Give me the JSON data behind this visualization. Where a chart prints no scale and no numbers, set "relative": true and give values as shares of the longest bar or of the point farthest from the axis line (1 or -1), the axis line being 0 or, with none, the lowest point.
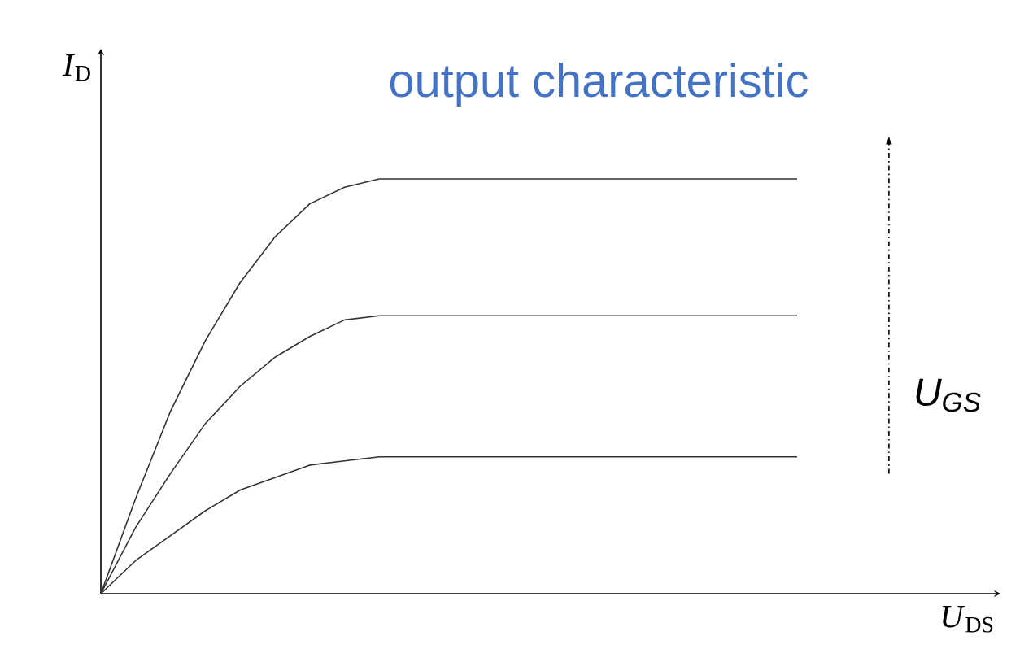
{
  "chart_data": {
    "type": "line",
    "relative": true,
    "title": "output characteristic",
    "xlabel": "*U*$_{DS}$",
    "ylabel": "*I*$_{D}$",
    "annotations": [
      "U$_{GS}$"
    ],
    "categories": [
      null,
      null,
      null,
      null,
      null,
      null,
      null,
      null,
      null,
      null,
      null,
      null,
      null,
      null,
      null,
      null,
      null,
      null,
      null,
      null,
      null
    ],
    "marker": "none",
    "line_style": "solid",
    "series": [
      {
        "color": "#333333",
        "values": [
          0,
          0.23,
          0.44,
          0.61,
          0.75,
          0.86,
          0.94,
          0.98,
          1,
          1,
          1,
          1,
          1,
          1,
          1,
          1,
          1,
          1,
          1,
          1,
          1
        ]
      },
      {
        "color": "#333333",
        "values": [
          0,
          0.16,
          0.29,
          0.41,
          0.5,
          0.57,
          0.62,
          0.66,
          0.67,
          0.67,
          0.67,
          0.67,
          0.67,
          0.67,
          0.67,
          0.67,
          0.67,
          0.67,
          0.67,
          0.67,
          0.67
        ]
      },
      {
        "color": "#333333",
        "values": [
          0,
          0.08,
          0.14,
          0.2,
          0.25,
          0.28,
          0.31,
          0.32,
          0.33,
          0.33,
          0.33,
          0.33,
          0.33,
          0.33,
          0.33,
          0.33,
          0.33,
          0.33,
          0.33,
          0.33,
          0.33
        ]
      }
    ]
  }
}
